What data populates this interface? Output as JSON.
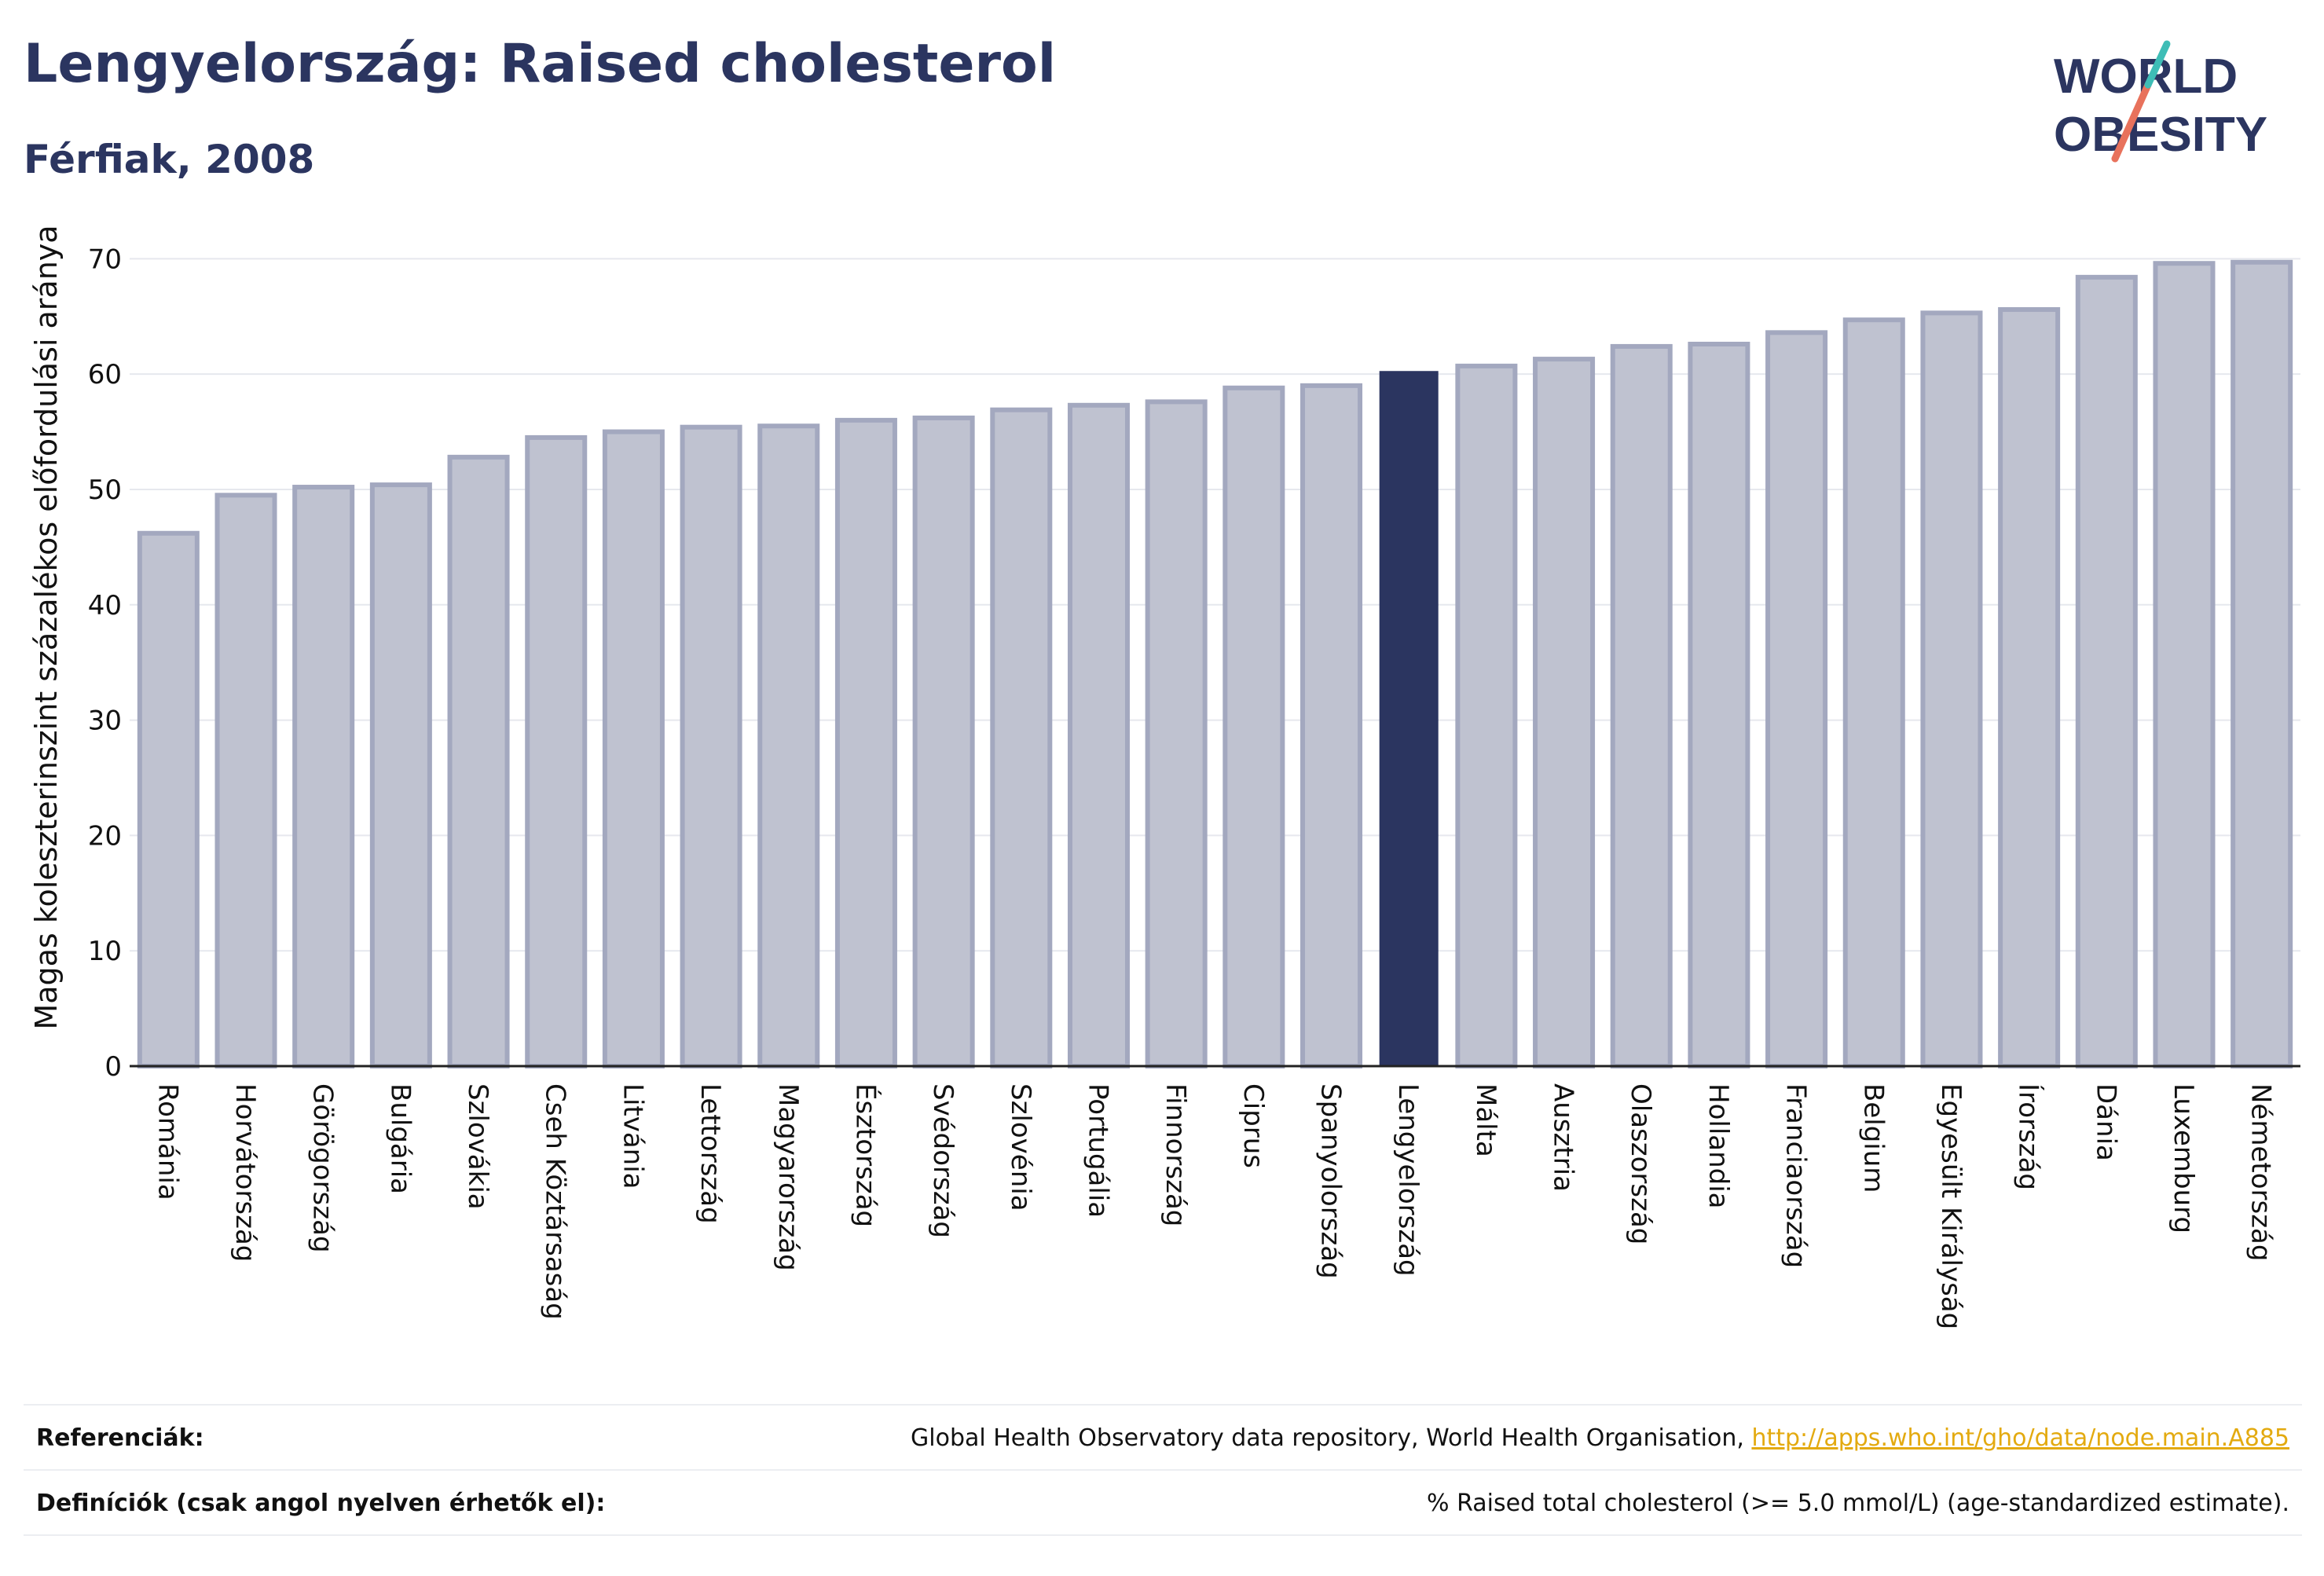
{
  "header": {
    "title": "Lengyelország: Raised cholesterol",
    "subtitle": "Férfiak, 2008"
  },
  "logo": {
    "line1": "WORLD",
    "line2": "OBESITY"
  },
  "chart_data": {
    "type": "bar",
    "ylabel": "Magas koleszterinszint százalékos előfordulási aránya",
    "ylim": [
      0,
      72
    ],
    "yticks": [
      0,
      10,
      20,
      30,
      40,
      50,
      60,
      70
    ],
    "grid": true,
    "highlight": "Lengyelország",
    "categories": [
      "Románia",
      "Horvátország",
      "Görögország",
      "Bulgária",
      "Szlovákia",
      "Cseh Köztársaság",
      "Litvánia",
      "Lettország",
      "Magyarország",
      "Észtország",
      "Svédország",
      "Szlovénia",
      "Portugália",
      "Finnország",
      "Ciprus",
      "Spanyolország",
      "Lengyelország",
      "Málta",
      "Ausztria",
      "Olaszország",
      "Hollandia",
      "Franciaország",
      "Belgium",
      "Egyesült Királyság",
      "Írország",
      "Dánia",
      "Luxemburg",
      "Németország"
    ],
    "values": [
      46.2,
      49.5,
      50.2,
      50.4,
      52.8,
      54.5,
      55.0,
      55.4,
      55.5,
      56.0,
      56.2,
      56.9,
      57.3,
      57.6,
      58.8,
      59.0,
      60.2,
      60.7,
      61.3,
      62.4,
      62.6,
      63.6,
      64.7,
      65.3,
      65.6,
      68.4,
      69.6,
      69.7
    ],
    "colors": {
      "bar": "#bfc2d0",
      "bar_border": "#a3a8bf",
      "highlight": "#2b3560"
    }
  },
  "footer": {
    "references_label": "Referenciák:",
    "references_text": "Global Health Observatory data repository, World Health Organisation, ",
    "references_link": "http://apps.who.int/gho/data/node.main.A885",
    "definitions_label": "Definíciók (csak angol nyelven érhetők el):",
    "definitions_text": "% Raised total cholesterol (>= 5.0 mmol/L) (age-standardized estimate)."
  }
}
